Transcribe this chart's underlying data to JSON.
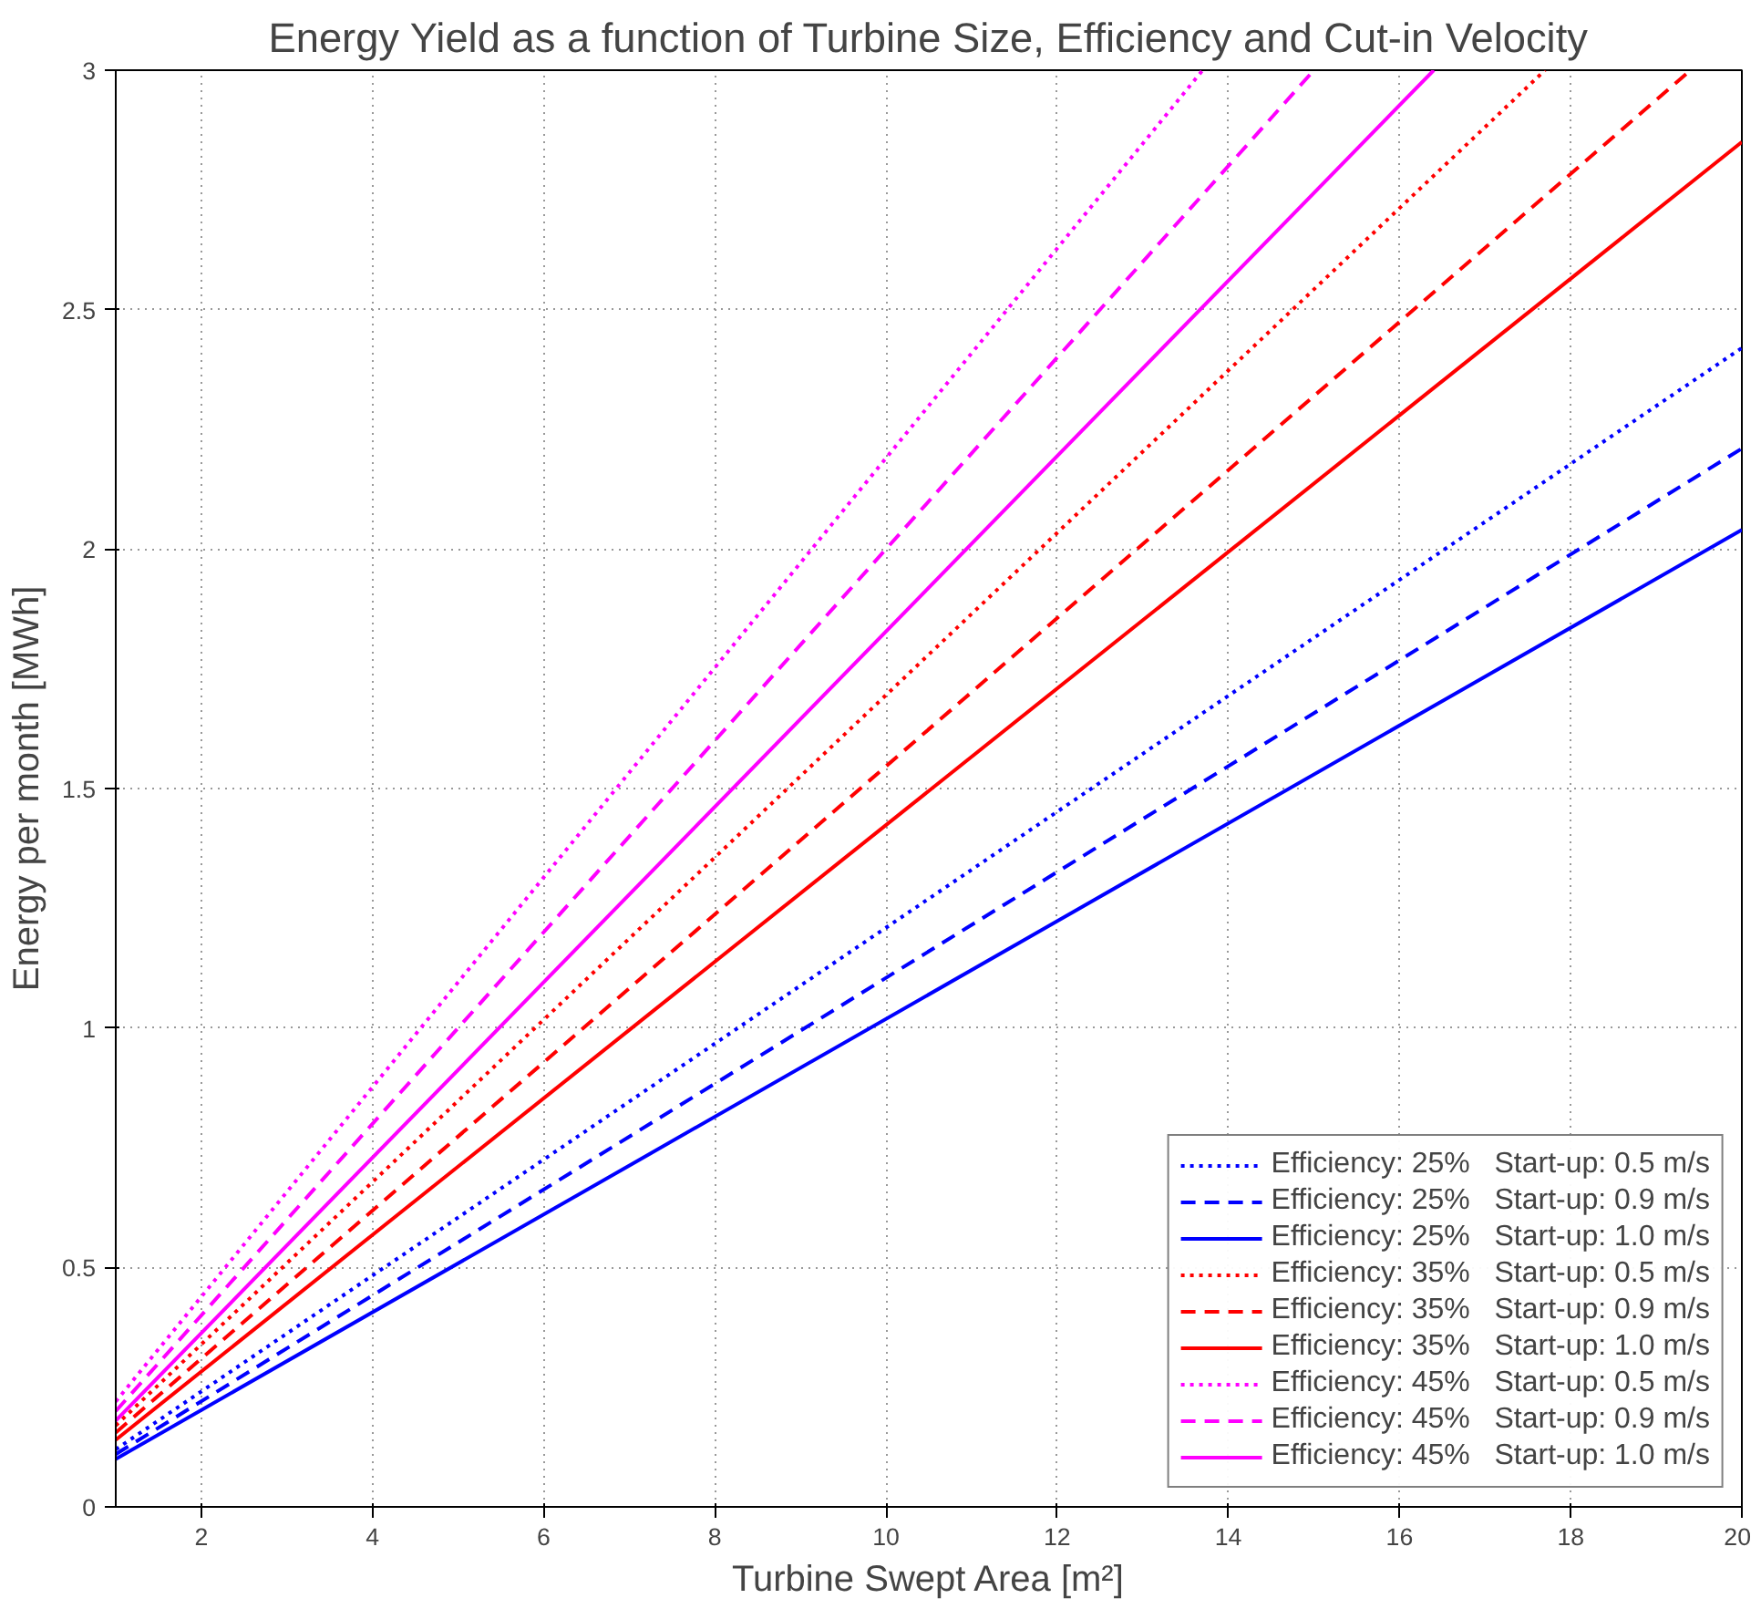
{
  "chart_data": {
    "type": "line",
    "title": "Energy Yield as a function of Turbine Size, Efficiency and Cut-in Velocity",
    "xlabel": "Turbine Swept Area [m²]",
    "ylabel": "Energy per month [MWh]",
    "xlim": [
      1,
      20
    ],
    "ylim": [
      0,
      3
    ],
    "xticks": [
      2,
      4,
      6,
      8,
      10,
      12,
      14,
      16,
      18,
      20
    ],
    "yticks": [
      0,
      0.5,
      1,
      1.5,
      2,
      2.5,
      3
    ],
    "grid": true,
    "legend": "bottom right",
    "series": [
      {
        "name": "Efficiency: 25%   Start-up: 0.5 m/s",
        "color": "#0000ff",
        "line_style": "dotted",
        "x": [
          1,
          20
        ],
        "values": [
          0.12,
          2.42
        ]
      },
      {
        "name": "Efficiency: 25%   Start-up: 0.9 m/s",
        "color": "#0000ff",
        "line_style": "dashed",
        "x": [
          1,
          20
        ],
        "values": [
          0.11,
          2.21
        ]
      },
      {
        "name": "Efficiency: 25%   Start-up: 1.0 m/s",
        "color": "#0000ff",
        "line_style": "solid",
        "x": [
          1,
          20
        ],
        "values": [
          0.1,
          2.04
        ]
      },
      {
        "name": "Efficiency: 35%   Start-up: 0.5 m/s",
        "color": "#ff0000",
        "line_style": "dotted",
        "x": [
          1,
          17.7
        ],
        "values": [
          0.17,
          3
        ]
      },
      {
        "name": "Efficiency: 35%   Start-up: 0.9 m/s",
        "color": "#ff0000",
        "line_style": "dashed",
        "x": [
          1,
          19.4
        ],
        "values": [
          0.155,
          3
        ]
      },
      {
        "name": "Efficiency: 35%   Start-up: 1.0 m/s",
        "color": "#ff0000",
        "line_style": "solid",
        "x": [
          1,
          20
        ],
        "values": [
          0.14,
          2.85
        ]
      },
      {
        "name": "Efficiency: 45%   Start-up: 0.5 m/s",
        "color": "#ff00ff",
        "line_style": "dotted",
        "x": [
          1,
          13.7
        ],
        "values": [
          0.22,
          3
        ]
      },
      {
        "name": "Efficiency: 45%   Start-up: 0.9 m/s",
        "color": "#ff00ff",
        "line_style": "dashed",
        "x": [
          1,
          15.0
        ],
        "values": [
          0.2,
          3
        ]
      },
      {
        "name": "Efficiency: 45%   Start-up: 1.0 m/s",
        "color": "#ff00ff",
        "line_style": "solid",
        "x": [
          1,
          16.4
        ],
        "values": [
          0.18,
          3
        ]
      }
    ]
  }
}
